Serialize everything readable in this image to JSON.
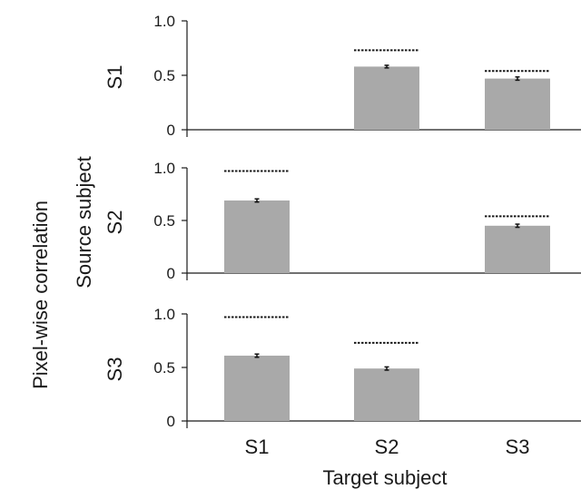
{
  "figure": {
    "outer_ylabel": "Pixel-wise correlation",
    "source_label": "Source subject",
    "xlabel": "Target subject",
    "categories": [
      "S1",
      "S2",
      "S3"
    ]
  },
  "chart_data": [
    {
      "type": "bar",
      "panel_label": "S1",
      "categories": [
        "S1",
        "S2",
        "S3"
      ],
      "values": [
        null,
        0.58,
        0.47
      ],
      "errors": [
        null,
        0.012,
        0.015
      ],
      "ceiling": [
        null,
        0.73,
        0.54
      ],
      "yticks": [
        "0",
        "0.5",
        "1.0"
      ],
      "ylim": [
        0,
        1.0
      ]
    },
    {
      "type": "bar",
      "panel_label": "S2",
      "categories": [
        "S1",
        "S2",
        "S3"
      ],
      "values": [
        0.69,
        null,
        0.45
      ],
      "errors": [
        0.015,
        null,
        0.015
      ],
      "ceiling": [
        0.97,
        null,
        0.54
      ],
      "yticks": [
        "0",
        "0.5",
        "1.0"
      ],
      "ylim": [
        0,
        1.0
      ]
    },
    {
      "type": "bar",
      "panel_label": "S3",
      "categories": [
        "S1",
        "S2",
        "S3"
      ],
      "values": [
        0.61,
        0.49,
        null
      ],
      "errors": [
        0.015,
        0.015,
        null
      ],
      "ceiling": [
        0.97,
        0.73,
        null
      ],
      "yticks": [
        "0",
        "0.5",
        "1.0"
      ],
      "ylim": [
        0,
        1.0
      ]
    }
  ],
  "colors": {
    "bar": "#a9a9a9",
    "axis": "#1a1a1a",
    "ceiling": "#1a1a1a"
  }
}
